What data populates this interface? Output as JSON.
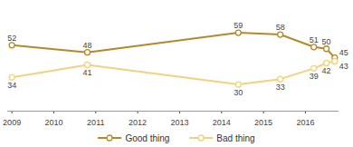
{
  "chart_data": {
    "type": "line",
    "x": [
      2009,
      2010.8,
      2014.4,
      2015.4,
      2016.2,
      2016.5,
      2016.7
    ],
    "series": [
      {
        "name": "Good thing",
        "color": "#b5892a",
        "values": [
          52,
          48,
          59,
          58,
          51,
          50,
          45
        ]
      },
      {
        "name": "Bad thing",
        "color": "#f2d27c",
        "values": [
          34,
          41,
          30,
          33,
          39,
          42,
          43
        ]
      }
    ],
    "xlim": [
      2008.9,
      2016.8
    ],
    "xticks": [
      2009,
      2010,
      2011,
      2012,
      2013,
      2014,
      2015,
      2016
    ],
    "ylim": [
      15,
      71
    ],
    "marker": "circle",
    "data_labels": true,
    "tick_labels": "x",
    "grid": false,
    "legend": "bottom"
  }
}
